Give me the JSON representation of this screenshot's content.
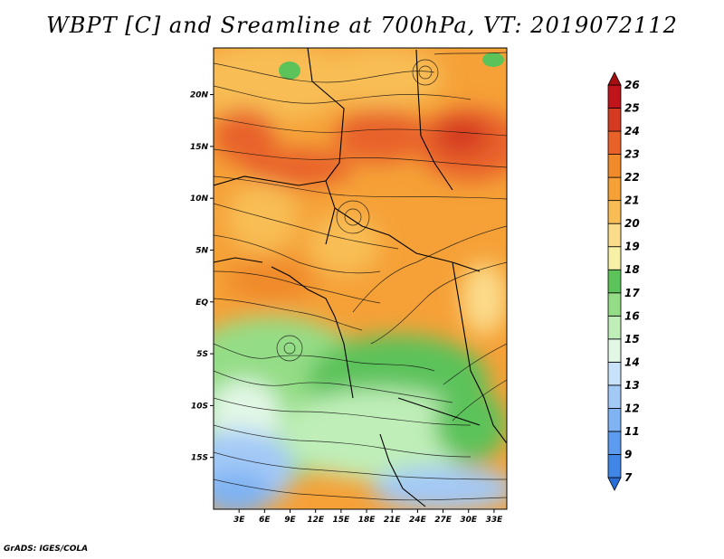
{
  "title": "WBPT [C] and Sreamline at 700hPa, VT: 2019072112",
  "credit": "GrADS: IGES/COLA",
  "map": {
    "lat_labels": [
      "20N",
      "15N",
      "10N",
      "5N",
      "EQ",
      "5S",
      "10S",
      "15S"
    ],
    "lat_values": [
      20,
      15,
      10,
      5,
      0,
      -5,
      -10,
      -15
    ],
    "lon_labels": [
      "3E",
      "6E",
      "9E",
      "12E",
      "15E",
      "18E",
      "21E",
      "24E",
      "27E",
      "30E",
      "33E"
    ],
    "lon_values": [
      3,
      6,
      9,
      12,
      15,
      18,
      21,
      24,
      27,
      30,
      33
    ],
    "lon_range": [
      0,
      34.5
    ],
    "lat_range": [
      -20,
      24.5
    ]
  },
  "colorbar": {
    "labels": [
      "7",
      "9",
      "11",
      "12",
      "13",
      "14",
      "15",
      "16",
      "17",
      "18",
      "19",
      "20",
      "21",
      "22",
      "23",
      "24",
      "25",
      "26"
    ],
    "colors": [
      "#2a6fd6",
      "#3f86e6",
      "#5d9bf0",
      "#7fb3f3",
      "#a3c9f7",
      "#c9e2fb",
      "#e2f7e6",
      "#bfeeb8",
      "#94dd86",
      "#5cc25a",
      "#f7f1a7",
      "#fbdc8b",
      "#f8bd55",
      "#f5a137",
      "#f08a2a",
      "#e8622a",
      "#d43a22",
      "#c0141a",
      "#a50f12"
    ]
  }
}
